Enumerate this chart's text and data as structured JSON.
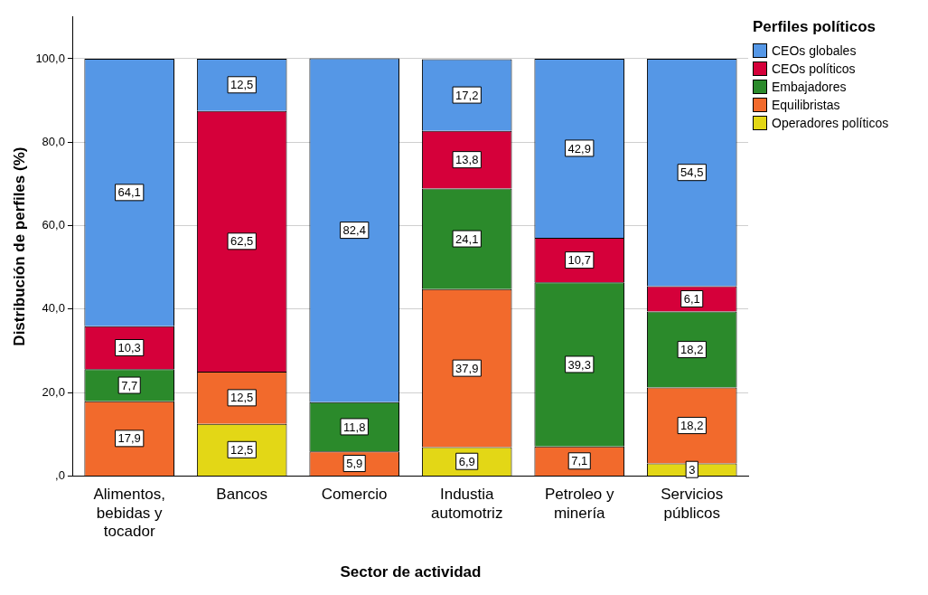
{
  "chart_data": {
    "type": "bar",
    "stacked": true,
    "xlabel": "Sector de actividad",
    "ylabel": "Distribución de perfiles (%)",
    "legend_title": "Perfiles políticos",
    "legend": "right",
    "grid": "y",
    "categories": [
      "Alimentos, bebidas y tocador",
      "Bancos",
      "Comercio",
      "Industia automotriz",
      "Petroleo y minería",
      "Servicios públicos"
    ],
    "ylim": [
      0,
      110
    ],
    "yticks": [
      {
        "value": 0,
        "label": ",0"
      },
      {
        "value": 20,
        "label": "20,0"
      },
      {
        "value": 40,
        "label": "40,0"
      },
      {
        "value": 60,
        "label": "60,0"
      },
      {
        "value": 80,
        "label": "80,0"
      },
      {
        "value": 100,
        "label": "100,0"
      }
    ],
    "series": [
      {
        "name": "Operadores políticos",
        "color": "#e3d716",
        "values": [
          null,
          12.5,
          null,
          6.9,
          null,
          3
        ],
        "value_labels": [
          null,
          "12,5",
          null,
          "6,9",
          null,
          "3"
        ]
      },
      {
        "name": "Equilibristas",
        "color": "#f26a2c",
        "values": [
          17.9,
          12.5,
          5.9,
          37.9,
          7.1,
          18.2
        ],
        "value_labels": [
          "17,9",
          "12,5",
          "5,9",
          "37,9",
          "7,1",
          "18,2"
        ]
      },
      {
        "name": "Embajadores",
        "color": "#2b8a2b",
        "values": [
          7.7,
          null,
          11.8,
          24.1,
          39.3,
          18.2
        ],
        "value_labels": [
          "7,7",
          null,
          "11,8",
          "24,1",
          "39,3",
          "18,2"
        ]
      },
      {
        "name": "CEOs políticos",
        "color": "#d5003a",
        "values": [
          10.3,
          62.5,
          null,
          13.8,
          10.7,
          6.1
        ],
        "value_labels": [
          "10,3",
          "62,5",
          null,
          "13,8",
          "10,7",
          "6,1"
        ]
      },
      {
        "name": "CEOs globales",
        "color": "#5597e6",
        "values": [
          64.1,
          12.5,
          82.4,
          17.2,
          42.9,
          54.5
        ],
        "value_labels": [
          "64,1",
          "12,5",
          "82,4",
          "17,2",
          "42,9",
          "54,5"
        ]
      }
    ]
  }
}
